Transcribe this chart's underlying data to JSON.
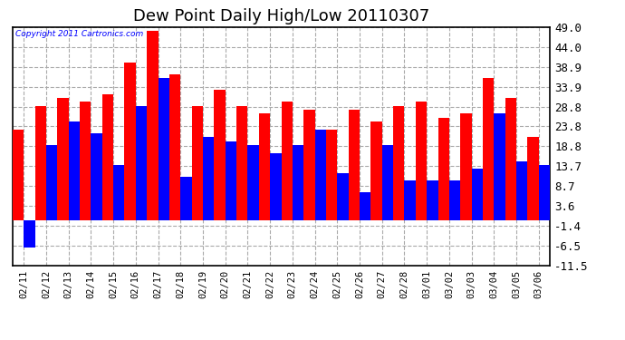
{
  "title": "Dew Point Daily High/Low 20110307",
  "copyright_text": "Copyright 2011 Cartronics.com",
  "dates": [
    "02/11",
    "02/12",
    "02/13",
    "02/14",
    "02/15",
    "02/16",
    "02/17",
    "02/18",
    "02/19",
    "02/20",
    "02/21",
    "02/22",
    "02/23",
    "02/24",
    "02/25",
    "02/26",
    "02/27",
    "02/28",
    "03/01",
    "03/02",
    "03/03",
    "03/04",
    "03/05",
    "03/06"
  ],
  "highs": [
    23.0,
    29.0,
    31.0,
    30.0,
    32.0,
    40.0,
    48.0,
    37.0,
    29.0,
    33.0,
    29.0,
    27.0,
    30.0,
    28.0,
    23.0,
    28.0,
    25.0,
    29.0,
    30.0,
    26.0,
    27.0,
    36.0,
    31.0,
    21.0
  ],
  "lows": [
    -7.0,
    19.0,
    25.0,
    22.0,
    14.0,
    29.0,
    36.0,
    11.0,
    21.0,
    20.0,
    19.0,
    17.0,
    19.0,
    23.0,
    12.0,
    7.0,
    19.0,
    10.0,
    10.0,
    10.0,
    13.0,
    27.0,
    15.0,
    14.0
  ],
  "bar_color_high": "#ff0000",
  "bar_color_low": "#0000ff",
  "background_color": "#ffffff",
  "grid_color": "#aaaaaa",
  "yticks": [
    49.0,
    44.0,
    38.9,
    33.9,
    28.8,
    23.8,
    18.8,
    13.7,
    8.7,
    3.6,
    -1.4,
    -6.5,
    -11.5
  ],
  "ymin": -11.5,
  "ymax": 49.0,
  "title_fontsize": 13,
  "figwidth": 6.9,
  "figheight": 3.75,
  "dpi": 100
}
